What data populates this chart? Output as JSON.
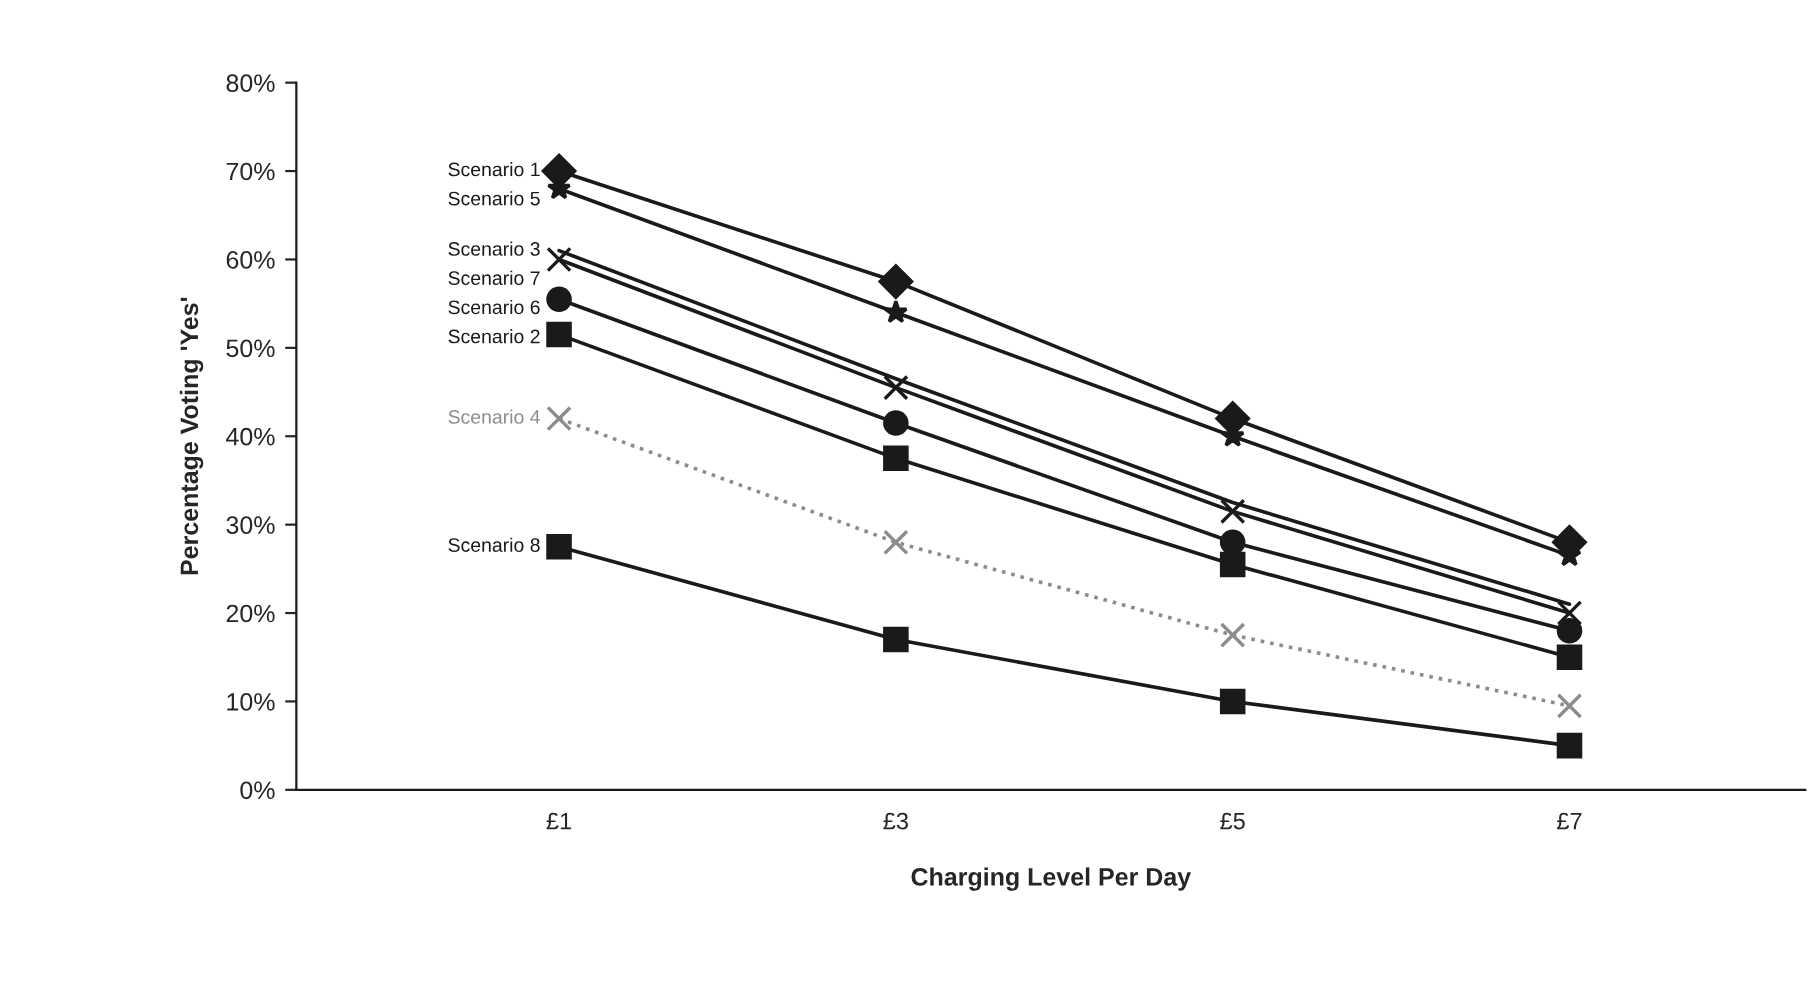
{
  "chart_data": {
    "type": "line",
    "xlabel": "Charging Level Per Day",
    "ylabel": "Percentage Voting 'Yes'",
    "categories": [
      "£1",
      "£3",
      "£5",
      "£7"
    ],
    "ylim": [
      0,
      80
    ],
    "yticks": [
      {
        "value": 0,
        "label": "0%"
      },
      {
        "value": 10,
        "label": "10%"
      },
      {
        "value": 20,
        "label": "20%"
      },
      {
        "value": 30,
        "label": "30%"
      },
      {
        "value": 40,
        "label": "40%"
      },
      {
        "value": 50,
        "label": "50%"
      },
      {
        "value": 60,
        "label": "60%"
      },
      {
        "value": 70,
        "label": "70%"
      },
      {
        "value": 80,
        "label": "80%"
      }
    ],
    "grid": false,
    "legend": false,
    "series": [
      {
        "name": "Scenario 1",
        "color": "#1a1a1a",
        "marker": "diamond",
        "line_style": "solid",
        "values": [
          70,
          57.5,
          42,
          28
        ]
      },
      {
        "name": "Scenario 5",
        "color": "#1a1a1a",
        "marker": "star",
        "line_style": "solid",
        "values": [
          68,
          54,
          40,
          26.5
        ]
      },
      {
        "name": "Scenario 3",
        "color": "#1a1a1a",
        "marker": "none",
        "line_style": "solid",
        "values": [
          61,
          46.5,
          32.5,
          21
        ]
      },
      {
        "name": "Scenario 7",
        "color": "#1a1a1a",
        "marker": "cross",
        "line_style": "solid",
        "values": [
          60,
          45.5,
          31.5,
          20
        ]
      },
      {
        "name": "Scenario 6",
        "color": "#1a1a1a",
        "marker": "circle",
        "line_style": "solid",
        "values": [
          55.5,
          41.5,
          28,
          18
        ]
      },
      {
        "name": "Scenario 2",
        "color": "#1a1a1a",
        "marker": "square",
        "line_style": "solid",
        "values": [
          51.5,
          37.5,
          25.5,
          15
        ]
      },
      {
        "name": "Scenario 4",
        "color": "#8c8c8c",
        "marker": "cross",
        "line_style": "dotted",
        "values": [
          42,
          28,
          17.5,
          9.5
        ]
      },
      {
        "name": "Scenario 8",
        "color": "#1a1a1a",
        "marker": "square",
        "line_style": "solid",
        "values": [
          27.5,
          17,
          10,
          5
        ]
      }
    ]
  }
}
